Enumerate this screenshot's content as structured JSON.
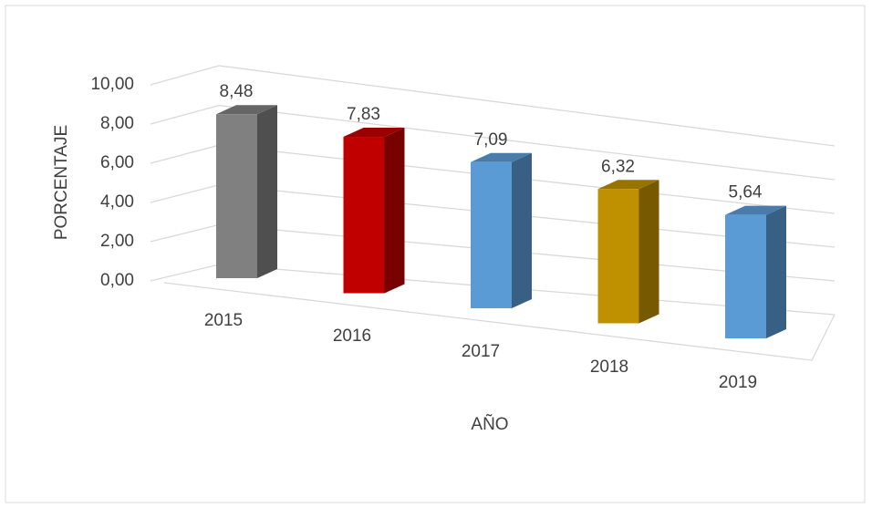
{
  "chart_data": {
    "type": "bar3d",
    "categories": [
      "2015",
      "2016",
      "2017",
      "2018",
      "2019"
    ],
    "values": [
      8.48,
      7.83,
      7.09,
      6.32,
      5.64
    ],
    "value_labels": [
      "8,48",
      "7,83",
      "7,09",
      "6,32",
      "5,64"
    ],
    "colors": [
      "#808080",
      "#c00000",
      "#5b9bd5",
      "#bf9000",
      "#5b9bd5"
    ],
    "ylabel": "PORCENTAJE",
    "xlabel": "AÑO",
    "ylim": [
      0,
      10
    ],
    "yticks": [
      {
        "value": 0,
        "label": "0,00"
      },
      {
        "value": 2,
        "label": "2,00"
      },
      {
        "value": 4,
        "label": "4,00"
      },
      {
        "value": 6,
        "label": "6,00"
      },
      {
        "value": 8,
        "label": "8,00"
      },
      {
        "value": 10,
        "label": "10,00"
      }
    ],
    "grid": true
  }
}
